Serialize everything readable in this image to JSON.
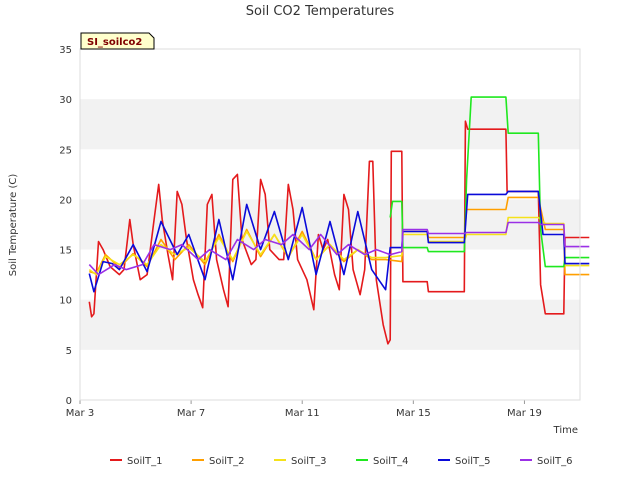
{
  "chart_data": {
    "type": "line",
    "title": "Soil CO2 Temperatures",
    "xlabel": "Time",
    "ylabel": "Soil Temperature (C)",
    "site_label": "SI_soilco2",
    "xlim": [
      "2024-03-03",
      "2024-03-21"
    ],
    "ylim": [
      0,
      35
    ],
    "yticks": [
      0,
      5,
      10,
      15,
      20,
      25,
      30,
      35
    ],
    "xticks": [
      {
        "date": "2024-03-03",
        "label": "Mar 3"
      },
      {
        "date": "2024-03-07",
        "label": "Mar 7"
      },
      {
        "date": "2024-03-11",
        "label": "Mar 11"
      },
      {
        "date": "2024-03-15",
        "label": "Mar 15"
      },
      {
        "date": "2024-03-19",
        "label": "Mar 19"
      }
    ],
    "grid": "horizontal bands",
    "legend_position": "bottom",
    "series": [
      {
        "name": "SoilT_1",
        "color": "#e41a1c",
        "points": [
          [
            "2024-03-03 08:00",
            9.8
          ],
          [
            "2024-03-03 10:00",
            8.3
          ],
          [
            "2024-03-03 12:00",
            8.6
          ],
          [
            "2024-03-03 16:00",
            15.8
          ],
          [
            "2024-03-03 20:00",
            15.0
          ],
          [
            "2024-03-04 02:00",
            13.3
          ],
          [
            "2024-03-04 10:00",
            12.5
          ],
          [
            "2024-03-04 14:00",
            13.0
          ],
          [
            "2024-03-04 19:00",
            18.0
          ],
          [
            "2024-03-04 22:00",
            15.5
          ],
          [
            "2024-03-05 04:00",
            12.0
          ],
          [
            "2024-03-05 10:00",
            12.5
          ],
          [
            "2024-03-05 16:00",
            18.0
          ],
          [
            "2024-03-05 20:00",
            21.5
          ],
          [
            "2024-03-05 23:00",
            18.0
          ],
          [
            "2024-03-06 04:00",
            14.5
          ],
          [
            "2024-03-06 08:00",
            12.0
          ],
          [
            "2024-03-06 12:00",
            20.8
          ],
          [
            "2024-03-06 16:00",
            19.5
          ],
          [
            "2024-03-06 20:00",
            16.0
          ],
          [
            "2024-03-07 02:00",
            12.0
          ],
          [
            "2024-03-07 06:00",
            10.5
          ],
          [
            "2024-03-07 10:00",
            9.2
          ],
          [
            "2024-03-07 14:00",
            19.5
          ],
          [
            "2024-03-07 18:00",
            20.5
          ],
          [
            "2024-03-07 22:00",
            14.0
          ],
          [
            "2024-03-08 04:00",
            11.0
          ],
          [
            "2024-03-08 08:00",
            9.3
          ],
          [
            "2024-03-08 12:00",
            22.0
          ],
          [
            "2024-03-08 16:00",
            22.5
          ],
          [
            "2024-03-08 20:00",
            16.0
          ],
          [
            "2024-03-09 04:00",
            13.5
          ],
          [
            "2024-03-09 08:00",
            14.0
          ],
          [
            "2024-03-09 12:00",
            22.0
          ],
          [
            "2024-03-09 16:00",
            20.5
          ],
          [
            "2024-03-09 20:00",
            15.0
          ],
          [
            "2024-03-10 04:00",
            14.0
          ],
          [
            "2024-03-10 08:00",
            14.0
          ],
          [
            "2024-03-10 12:00",
            21.5
          ],
          [
            "2024-03-10 16:00",
            19.0
          ],
          [
            "2024-03-10 20:00",
            14.0
          ],
          [
            "2024-03-11 04:00",
            12.0
          ],
          [
            "2024-03-11 10:00",
            9.0
          ],
          [
            "2024-03-11 14:00",
            16.5
          ],
          [
            "2024-03-11 18:00",
            15.0
          ],
          [
            "2024-03-11 22:00",
            16.0
          ],
          [
            "2024-03-12 04:00",
            12.5
          ],
          [
            "2024-03-12 08:00",
            11.0
          ],
          [
            "2024-03-12 12:00",
            20.5
          ],
          [
            "2024-03-12 16:00",
            19.0
          ],
          [
            "2024-03-12 20:00",
            13.0
          ],
          [
            "2024-03-13 02:00",
            10.5
          ],
          [
            "2024-03-13 06:00",
            13.0
          ],
          [
            "2024-03-13 10:00",
            23.8
          ],
          [
            "2024-03-13 13:00",
            23.8
          ],
          [
            "2024-03-13 16:00",
            12.0
          ],
          [
            "2024-03-13 22:00",
            7.5
          ],
          [
            "2024-03-14 02:00",
            5.6
          ],
          [
            "2024-03-14 04:00",
            6.0
          ],
          [
            "2024-03-14 05:00",
            24.8
          ],
          [
            "2024-03-14 14:00",
            24.8
          ],
          [
            "2024-03-14 15:00",
            11.8
          ],
          [
            "2024-03-15 12:00",
            11.8
          ],
          [
            "2024-03-15 13:00",
            10.8
          ],
          [
            "2024-03-16 20:00",
            10.8
          ],
          [
            "2024-03-16 21:00",
            27.8
          ],
          [
            "2024-03-16 23:00",
            27.0
          ],
          [
            "2024-03-18 08:00",
            27.0
          ],
          [
            "2024-03-18 09:00",
            20.8
          ],
          [
            "2024-03-19 12:00",
            20.8
          ],
          [
            "2024-03-19 14:00",
            11.5
          ],
          [
            "2024-03-19 18:00",
            8.6
          ],
          [
            "2024-03-20 10:00",
            8.6
          ],
          [
            "2024-03-20 11:00",
            16.2
          ],
          [
            "2024-03-21 08:00",
            16.2
          ]
        ]
      },
      {
        "name": "SoilT_2",
        "color": "#ff9f00",
        "points": [
          [
            "2024-03-03 08:00",
            12.8
          ],
          [
            "2024-03-03 14:00",
            12.6
          ],
          [
            "2024-03-03 22:00",
            14.5
          ],
          [
            "2024-03-04 10:00",
            13.2
          ],
          [
            "2024-03-04 22:00",
            14.6
          ],
          [
            "2024-03-05 10:00",
            13.3
          ],
          [
            "2024-03-05 22:00",
            16.0
          ],
          [
            "2024-03-06 10:00",
            14.0
          ],
          [
            "2024-03-06 22:00",
            15.5
          ],
          [
            "2024-03-07 12:00",
            13.5
          ],
          [
            "2024-03-08 00:00",
            16.5
          ],
          [
            "2024-03-08 12:00",
            13.8
          ],
          [
            "2024-03-09 00:00",
            17.0
          ],
          [
            "2024-03-09 12:00",
            14.3
          ],
          [
            "2024-03-10 00:00",
            16.5
          ],
          [
            "2024-03-10 12:00",
            14.2
          ],
          [
            "2024-03-11 00:00",
            16.8
          ],
          [
            "2024-03-11 12:00",
            14.0
          ],
          [
            "2024-03-12 00:00",
            15.5
          ],
          [
            "2024-03-12 12:00",
            13.8
          ],
          [
            "2024-03-13 00:00",
            15.0
          ],
          [
            "2024-03-13 12:00",
            14.0
          ],
          [
            "2024-03-14 00:00",
            14.0
          ],
          [
            "2024-03-14 14:00",
            13.8
          ],
          [
            "2024-03-14 15:00",
            16.8
          ],
          [
            "2024-03-15 12:00",
            16.8
          ],
          [
            "2024-03-15 13:00",
            16.2
          ],
          [
            "2024-03-16 20:00",
            16.2
          ],
          [
            "2024-03-16 22:00",
            19.0
          ],
          [
            "2024-03-18 08:00",
            19.0
          ],
          [
            "2024-03-18 10:00",
            20.2
          ],
          [
            "2024-03-19 12:00",
            20.2
          ],
          [
            "2024-03-19 18:00",
            17.0
          ],
          [
            "2024-03-20 10:00",
            17.0
          ],
          [
            "2024-03-20 11:00",
            12.5
          ],
          [
            "2024-03-21 08:00",
            12.5
          ]
        ]
      },
      {
        "name": "SoilT_3",
        "color": "#f5e21a",
        "points": [
          [
            "2024-03-03 08:00",
            13.0
          ],
          [
            "2024-03-03 14:00",
            12.5
          ],
          [
            "2024-03-03 22:00",
            14.3
          ],
          [
            "2024-03-04 10:00",
            13.5
          ],
          [
            "2024-03-04 22:00",
            14.5
          ],
          [
            "2024-03-05 10:00",
            13.5
          ],
          [
            "2024-03-05 22:00",
            15.5
          ],
          [
            "2024-03-06 10:00",
            14.5
          ],
          [
            "2024-03-06 22:00",
            15.2
          ],
          [
            "2024-03-07 12:00",
            13.8
          ],
          [
            "2024-03-08 00:00",
            16.2
          ],
          [
            "2024-03-08 12:00",
            14.0
          ],
          [
            "2024-03-09 00:00",
            16.8
          ],
          [
            "2024-03-09 12:00",
            14.5
          ],
          [
            "2024-03-10 00:00",
            16.5
          ],
          [
            "2024-03-10 12:00",
            14.3
          ],
          [
            "2024-03-11 00:00",
            16.5
          ],
          [
            "2024-03-11 12:00",
            14.0
          ],
          [
            "2024-03-12 00:00",
            15.5
          ],
          [
            "2024-03-12 12:00",
            14.0
          ],
          [
            "2024-03-13 00:00",
            15.0
          ],
          [
            "2024-03-13 12:00",
            14.2
          ],
          [
            "2024-03-14 00:00",
            14.2
          ],
          [
            "2024-03-14 14:00",
            14.4
          ],
          [
            "2024-03-14 15:00",
            16.5
          ],
          [
            "2024-03-15 12:00",
            16.5
          ],
          [
            "2024-03-15 13:00",
            15.8
          ],
          [
            "2024-03-16 20:00",
            15.8
          ],
          [
            "2024-03-16 22:00",
            16.5
          ],
          [
            "2024-03-18 08:00",
            16.5
          ],
          [
            "2024-03-18 10:00",
            18.2
          ],
          [
            "2024-03-19 12:00",
            18.2
          ],
          [
            "2024-03-19 18:00",
            17.6
          ],
          [
            "2024-03-20 10:00",
            17.6
          ],
          [
            "2024-03-20 11:00",
            13.4
          ],
          [
            "2024-03-21 08:00",
            13.4
          ]
        ]
      },
      {
        "name": "SoilT_4",
        "color": "#1fe81f",
        "points": [
          [
            "2024-03-14 04:00",
            18.2
          ],
          [
            "2024-03-14 06:00",
            19.8
          ],
          [
            "2024-03-14 14:00",
            19.8
          ],
          [
            "2024-03-14 15:00",
            15.2
          ],
          [
            "2024-03-15 12:00",
            15.2
          ],
          [
            "2024-03-15 13:00",
            14.8
          ],
          [
            "2024-03-16 20:00",
            14.8
          ],
          [
            "2024-03-16 22:00",
            22.0
          ],
          [
            "2024-03-17 02:00",
            30.2
          ],
          [
            "2024-03-18 08:00",
            30.2
          ],
          [
            "2024-03-18 10:00",
            26.6
          ],
          [
            "2024-03-19 12:00",
            26.6
          ],
          [
            "2024-03-19 14:00",
            17.0
          ],
          [
            "2024-03-19 18:00",
            13.3
          ],
          [
            "2024-03-20 10:00",
            13.3
          ],
          [
            "2024-03-20 11:00",
            14.2
          ],
          [
            "2024-03-21 08:00",
            14.2
          ]
        ]
      },
      {
        "name": "SoilT_5",
        "color": "#0a0ad9",
        "points": [
          [
            "2024-03-03 08:00",
            12.6
          ],
          [
            "2024-03-03 12:00",
            10.8
          ],
          [
            "2024-03-03 20:00",
            13.8
          ],
          [
            "2024-03-04 04:00",
            13.6
          ],
          [
            "2024-03-04 10:00",
            13.0
          ],
          [
            "2024-03-04 22:00",
            15.5
          ],
          [
            "2024-03-05 10:00",
            12.8
          ],
          [
            "2024-03-05 22:00",
            17.8
          ],
          [
            "2024-03-06 12:00",
            14.5
          ],
          [
            "2024-03-06 22:00",
            16.5
          ],
          [
            "2024-03-07 12:00",
            12.0
          ],
          [
            "2024-03-08 00:00",
            18.0
          ],
          [
            "2024-03-08 12:00",
            12.0
          ],
          [
            "2024-03-09 00:00",
            19.5
          ],
          [
            "2024-03-09 12:00",
            15.0
          ],
          [
            "2024-03-10 00:00",
            18.8
          ],
          [
            "2024-03-10 12:00",
            14.0
          ],
          [
            "2024-03-11 00:00",
            19.2
          ],
          [
            "2024-03-11 12:00",
            12.5
          ],
          [
            "2024-03-12 00:00",
            17.8
          ],
          [
            "2024-03-12 12:00",
            12.5
          ],
          [
            "2024-03-13 00:00",
            18.8
          ],
          [
            "2024-03-13 12:00",
            13.0
          ],
          [
            "2024-03-14 00:00",
            11.0
          ],
          [
            "2024-03-14 04:00",
            15.2
          ],
          [
            "2024-03-14 14:00",
            15.2
          ],
          [
            "2024-03-14 15:00",
            16.8
          ],
          [
            "2024-03-15 12:00",
            16.8
          ],
          [
            "2024-03-15 13:00",
            15.7
          ],
          [
            "2024-03-16 20:00",
            15.7
          ],
          [
            "2024-03-16 23:00",
            20.5
          ],
          [
            "2024-03-18 08:00",
            20.5
          ],
          [
            "2024-03-18 10:00",
            20.8
          ],
          [
            "2024-03-19 12:00",
            20.8
          ],
          [
            "2024-03-19 16:00",
            16.5
          ],
          [
            "2024-03-20 10:00",
            16.5
          ],
          [
            "2024-03-20 11:00",
            13.6
          ],
          [
            "2024-03-21 08:00",
            13.6
          ]
        ]
      },
      {
        "name": "SoilT_6",
        "color": "#9b30e6",
        "points": [
          [
            "2024-03-03 08:00",
            13.5
          ],
          [
            "2024-03-03 16:00",
            12.5
          ],
          [
            "2024-03-04 06:00",
            13.5
          ],
          [
            "2024-03-04 16:00",
            13.0
          ],
          [
            "2024-03-05 06:00",
            13.5
          ],
          [
            "2024-03-05 16:00",
            15.5
          ],
          [
            "2024-03-06 06:00",
            15.0
          ],
          [
            "2024-03-06 16:00",
            15.5
          ],
          [
            "2024-03-07 06:00",
            14.0
          ],
          [
            "2024-03-07 16:00",
            15.0
          ],
          [
            "2024-03-08 06:00",
            14.0
          ],
          [
            "2024-03-08 16:00",
            16.0
          ],
          [
            "2024-03-09 06:00",
            15.0
          ],
          [
            "2024-03-09 16:00",
            16.0
          ],
          [
            "2024-03-10 06:00",
            15.5
          ],
          [
            "2024-03-10 16:00",
            16.5
          ],
          [
            "2024-03-11 06:00",
            15.0
          ],
          [
            "2024-03-11 16:00",
            16.5
          ],
          [
            "2024-03-12 06:00",
            14.5
          ],
          [
            "2024-03-12 16:00",
            15.5
          ],
          [
            "2024-03-13 06:00",
            14.5
          ],
          [
            "2024-03-13 16:00",
            15.0
          ],
          [
            "2024-03-14 04:00",
            14.5
          ],
          [
            "2024-03-14 14:00",
            14.8
          ],
          [
            "2024-03-14 15:00",
            17.0
          ],
          [
            "2024-03-15 12:00",
            17.0
          ],
          [
            "2024-03-15 13:00",
            16.6
          ],
          [
            "2024-03-16 20:00",
            16.6
          ],
          [
            "2024-03-16 22:00",
            16.7
          ],
          [
            "2024-03-18 08:00",
            16.7
          ],
          [
            "2024-03-18 10:00",
            17.7
          ],
          [
            "2024-03-19 12:00",
            17.7
          ],
          [
            "2024-03-19 14:00",
            17.5
          ],
          [
            "2024-03-20 10:00",
            17.5
          ],
          [
            "2024-03-20 11:00",
            15.3
          ],
          [
            "2024-03-21 08:00",
            15.3
          ]
        ]
      }
    ]
  }
}
